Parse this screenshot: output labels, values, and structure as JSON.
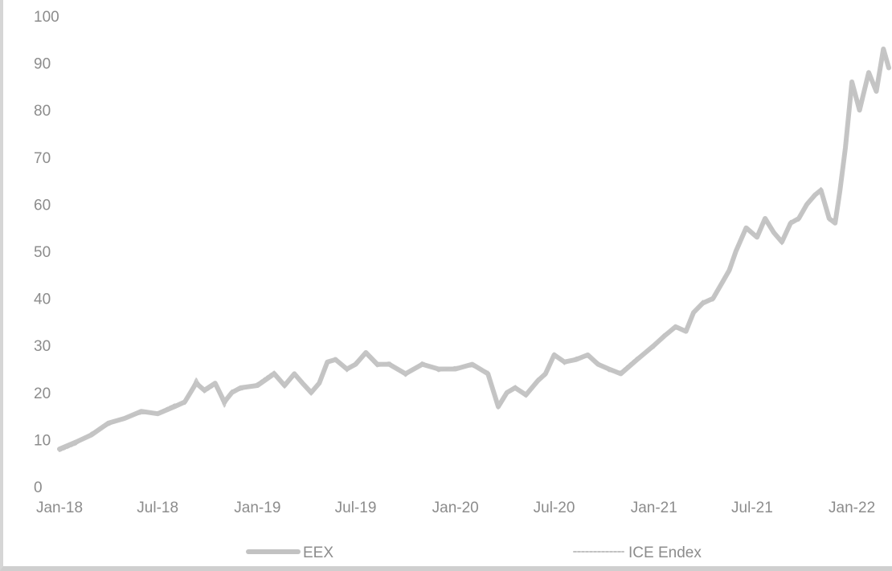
{
  "chart_data": {
    "type": "line",
    "title": "",
    "xlabel": "",
    "ylabel": "",
    "ylim": [
      0,
      100
    ],
    "yticks": [
      0,
      10,
      20,
      30,
      40,
      50,
      60,
      70,
      80,
      90,
      100
    ],
    "xticks": [
      "Jan-18",
      "Jul-18",
      "Jan-19",
      "Jul-19",
      "Jan-20",
      "Jul-20",
      "Jan-21",
      "Jul-21",
      "Jan-22"
    ],
    "x_range": [
      "2018-01-01",
      "2022-03-10"
    ],
    "grid": false,
    "legend": "bottom",
    "colors": {
      "line": "#c2c2c2",
      "text": "#8c8c8c"
    },
    "series": [
      {
        "name": "EEX",
        "x": [
          "2018-01-01",
          "2018-02-01",
          "2018-03-01",
          "2018-04-01",
          "2018-05-01",
          "2018-06-01",
          "2018-07-01",
          "2018-08-01",
          "2018-08-20",
          "2018-09-10",
          "2018-09-25",
          "2018-10-15",
          "2018-11-01",
          "2018-11-15",
          "2018-12-01",
          "2019-01-01",
          "2019-02-01",
          "2019-02-20",
          "2019-03-10",
          "2019-03-25",
          "2019-04-10",
          "2019-04-25",
          "2019-05-10",
          "2019-05-25",
          "2019-06-15",
          "2019-07-01",
          "2019-07-20",
          "2019-08-10",
          "2019-09-01",
          "2019-10-01",
          "2019-11-01",
          "2019-12-01",
          "2020-01-01",
          "2020-02-01",
          "2020-03-01",
          "2020-03-20",
          "2020-04-05",
          "2020-04-20",
          "2020-05-10",
          "2020-06-01",
          "2020-06-15",
          "2020-07-01",
          "2020-07-20",
          "2020-08-10",
          "2020-09-01",
          "2020-09-20",
          "2020-10-10",
          "2020-11-01",
          "2020-12-01",
          "2021-01-01",
          "2021-01-20",
          "2021-02-10",
          "2021-03-01",
          "2021-03-15",
          "2021-04-01",
          "2021-04-20",
          "2021-05-10",
          "2021-05-20",
          "2021-06-01",
          "2021-06-20",
          "2021-07-10",
          "2021-07-25",
          "2021-08-10",
          "2021-08-25",
          "2021-09-10",
          "2021-09-25",
          "2021-10-10",
          "2021-10-25",
          "2021-11-05",
          "2021-11-20",
          "2021-12-01",
          "2021-12-10",
          "2021-12-20",
          "2022-01-01",
          "2022-01-15",
          "2022-02-01",
          "2022-02-15",
          "2022-02-28",
          "2022-03-10"
        ],
        "values": [
          8,
          9.5,
          11,
          13.5,
          14.5,
          16,
          15.5,
          17,
          18,
          22,
          20.5,
          22,
          18,
          20,
          21,
          21.5,
          24,
          21.5,
          24,
          22,
          20,
          22,
          26.5,
          27,
          25,
          26,
          28.5,
          26,
          26,
          24,
          26,
          25,
          25,
          26,
          24,
          17,
          20,
          21,
          19.5,
          22.5,
          24,
          28,
          26.5,
          27,
          28,
          26,
          25,
          24,
          27,
          30,
          32,
          34,
          33,
          37,
          39,
          40,
          44,
          46,
          50,
          55,
          53,
          57,
          54,
          52,
          56,
          57,
          60,
          62,
          63,
          57,
          56,
          63,
          72,
          86,
          80,
          88,
          84,
          93,
          89
        ]
      },
      {
        "name": "ICE Endex",
        "x": [
          "2018-01-01",
          "2018-02-01",
          "2018-03-01",
          "2018-04-01",
          "2018-05-01",
          "2018-06-01",
          "2018-07-01",
          "2018-08-01",
          "2018-08-20",
          "2018-09-10",
          "2018-09-25",
          "2018-10-15",
          "2018-11-01",
          "2018-11-15",
          "2018-12-01",
          "2019-01-01",
          "2019-02-01",
          "2019-02-20",
          "2019-03-10",
          "2019-03-25",
          "2019-04-10",
          "2019-04-25",
          "2019-05-10",
          "2019-05-25",
          "2019-06-15",
          "2019-07-01",
          "2019-07-20",
          "2019-08-10",
          "2019-09-01",
          "2019-10-01",
          "2019-11-01",
          "2019-12-01",
          "2020-01-01",
          "2020-02-01",
          "2020-03-01",
          "2020-03-20",
          "2020-04-05",
          "2020-04-20",
          "2020-05-10",
          "2020-06-01",
          "2020-06-15",
          "2020-07-01",
          "2020-07-20",
          "2020-08-10",
          "2020-09-01",
          "2020-09-20",
          "2020-10-10",
          "2020-11-01",
          "2020-12-01",
          "2021-01-01",
          "2021-01-20",
          "2021-02-10",
          "2021-03-01",
          "2021-03-15",
          "2021-04-01",
          "2021-04-20",
          "2021-05-10",
          "2021-05-20",
          "2021-06-01",
          "2021-06-20",
          "2021-07-10",
          "2021-07-25",
          "2021-08-10",
          "2021-08-25",
          "2021-09-10",
          "2021-09-25",
          "2021-10-10",
          "2021-10-25",
          "2021-11-05",
          "2021-11-20",
          "2021-12-01",
          "2021-12-10",
          "2021-12-20",
          "2022-01-01",
          "2022-01-15",
          "2022-02-01",
          "2022-02-15",
          "2022-02-28",
          "2022-03-10"
        ],
        "values": [
          7.5,
          9,
          11.5,
          13,
          14.8,
          15.5,
          15.8,
          17.5,
          17.5,
          23,
          20,
          21.5,
          17,
          20.5,
          20.5,
          22,
          24.5,
          21,
          23.5,
          22.5,
          19.5,
          22.5,
          26,
          27.5,
          24.5,
          26.5,
          28,
          25.5,
          26.5,
          23.5,
          26.5,
          24.5,
          25.5,
          25.5,
          24.5,
          16.5,
          19.5,
          21.5,
          19,
          23,
          23.5,
          28.5,
          26,
          27.5,
          27.5,
          26.5,
          24.5,
          24.5,
          27.5,
          29.5,
          32.5,
          33.5,
          33.5,
          36.5,
          39.5,
          39.5,
          44.5,
          45.5,
          50.5,
          54.5,
          53.5,
          56.5,
          54.5,
          51.5,
          56.5,
          56.5,
          60.5,
          61.5,
          63.5,
          56.5,
          57,
          62,
          73,
          85,
          81,
          87,
          85,
          92,
          90
        ]
      }
    ]
  }
}
